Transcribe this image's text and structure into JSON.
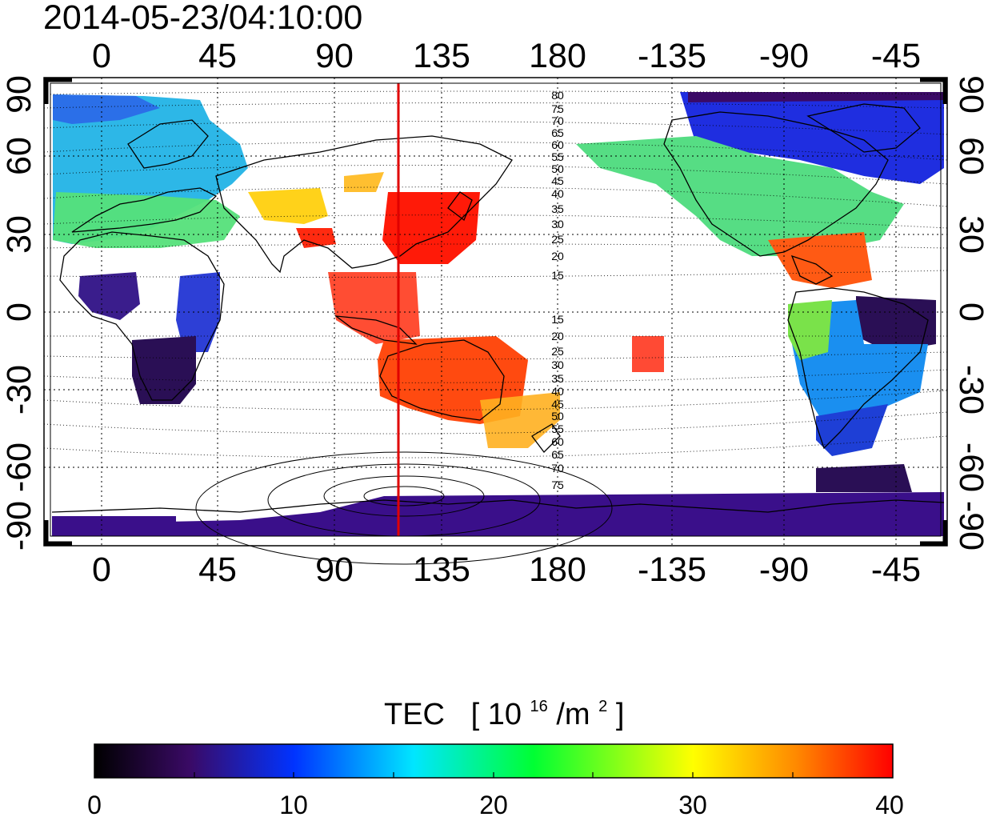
{
  "title": "2014-05-23/04:10:00",
  "map": {
    "lon_ticks": [
      "0",
      "45",
      "90",
      "135",
      "180",
      "-135",
      "-90",
      "-45"
    ],
    "lat_ticks_left": [
      "90",
      "60",
      "30",
      "0",
      "-30",
      "-60",
      "-90"
    ],
    "lat_ticks_right": [
      "90",
      "60",
      "30",
      "0",
      "-30",
      "-60",
      "-90"
    ],
    "contour_labels_north": [
      "80",
      "75",
      "70",
      "65",
      "60",
      "55",
      "50",
      "45",
      "40",
      "35",
      "30",
      "25",
      "20",
      "15"
    ],
    "contour_labels_south": [
      "15",
      "20",
      "25",
      "30",
      "35",
      "40",
      "45",
      "50",
      "55",
      "60",
      "65",
      "70",
      "75"
    ],
    "marker_line": {
      "longitude": 120,
      "color": "#e00000"
    }
  },
  "colorbar": {
    "label": "TEC",
    "unit_base": "10",
    "unit_exp": "16",
    "unit_mid": "/m",
    "unit_exp2": "2",
    "ticks": [
      "0",
      "10",
      "20",
      "30",
      "40"
    ],
    "range": [
      0,
      40
    ],
    "stops": [
      "#000000",
      "#3a0a66",
      "#0033ff",
      "#00e6ff",
      "#00ff33",
      "#ffff00",
      "#ff8800",
      "#ff0000"
    ]
  }
}
